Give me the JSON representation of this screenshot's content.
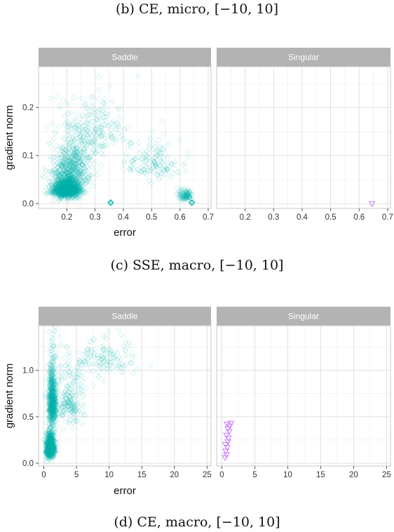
{
  "captions": {
    "b": "(b) CE, micro, [−10, 10]",
    "c": "(c) SSE, macro, [−10, 10]",
    "d": "(d) CE, macro, [−10, 10]"
  },
  "colors": {
    "saddle": "#00b3b0",
    "singular": "#c77cff",
    "strip": "#b3b3b3",
    "grid": "#ebebeb",
    "border": "#c8c8c8"
  },
  "chart_data": [
    {
      "type": "scatter",
      "id": "c",
      "xlabel": "error",
      "ylabel": "gradient norm",
      "facets": [
        "Saddle",
        "Singular"
      ],
      "xlim": [
        0.1,
        0.71
      ],
      "ylim": [
        -0.01,
        0.285
      ],
      "x_ticks": [
        "0.2",
        "0.3",
        "0.4",
        "0.5",
        "0.6",
        "0.7"
      ],
      "y_ticks": [
        "0.0",
        "0.1",
        "0.2"
      ],
      "x_tick_values": [
        0.2,
        0.3,
        0.4,
        0.5,
        0.6,
        0.7
      ],
      "y_tick_values": [
        0.0,
        0.1,
        0.2
      ],
      "series": [
        {
          "facet": "Saddle",
          "marker": "diamond",
          "clusters": [
            {
              "x_center": 0.2,
              "y_center": 0.022,
              "x_spread": 0.05,
              "y_spread": 0.02,
              "count": 1400
            },
            {
              "x_center": 0.22,
              "y_center": 0.06,
              "x_spread": 0.07,
              "y_spread": 0.05,
              "count": 500
            },
            {
              "x_center": 0.3,
              "y_center": 0.13,
              "x_spread": 0.11,
              "y_spread": 0.06,
              "count": 220
            },
            {
              "x_center": 0.5,
              "y_center": 0.07,
              "x_spread": 0.1,
              "y_spread": 0.04,
              "count": 160
            },
            {
              "x_center": 0.62,
              "y_center": 0.012,
              "x_spread": 0.025,
              "y_spread": 0.01,
              "count": 120
            }
          ],
          "highlight_points": [
            {
              "x": 0.355,
              "y": 0.002
            },
            {
              "x": 0.642,
              "y": 0.002
            }
          ]
        },
        {
          "facet": "Singular",
          "marker": "triangle-down",
          "points": [
            {
              "x": 0.645,
              "y": 0.0
            }
          ]
        }
      ]
    },
    {
      "type": "scatter",
      "id": "d",
      "xlabel": "error",
      "ylabel": "gradient norm",
      "facets": [
        "Saddle",
        "Singular"
      ],
      "xlim": [
        -0.8,
        25.6
      ],
      "ylim": [
        -0.03,
        1.48
      ],
      "x_ticks": [
        "0",
        "5",
        "10",
        "15",
        "20",
        "25"
      ],
      "y_ticks": [
        "0.0",
        "0.5",
        "1.0"
      ],
      "x_tick_values": [
        0,
        5,
        10,
        15,
        20,
        25
      ],
      "y_tick_values": [
        0.0,
        0.5,
        1.0
      ],
      "series": [
        {
          "facet": "Saddle",
          "marker": "diamond",
          "clusters": [
            {
              "x_center": 1.0,
              "y_center": 0.12,
              "x_spread": 0.6,
              "y_spread": 0.12,
              "count": 1000
            },
            {
              "x_center": 1.3,
              "y_center": 0.55,
              "x_spread": 0.6,
              "y_spread": 0.35,
              "count": 700
            },
            {
              "x_center": 4.0,
              "y_center": 0.55,
              "x_spread": 2.5,
              "y_spread": 0.3,
              "count": 220
            },
            {
              "x_center": 9.0,
              "y_center": 1.05,
              "x_spread": 5.0,
              "y_spread": 0.2,
              "count": 150
            }
          ],
          "highlight_points": []
        },
        {
          "facet": "Singular",
          "marker": "triangle-down",
          "points": [
            {
              "x": 0.5,
              "y": 0.06
            },
            {
              "x": 0.7,
              "y": 0.09
            },
            {
              "x": 0.6,
              "y": 0.13
            },
            {
              "x": 0.8,
              "y": 0.17
            },
            {
              "x": 0.55,
              "y": 0.2
            },
            {
              "x": 0.9,
              "y": 0.23
            },
            {
              "x": 1.0,
              "y": 0.27
            },
            {
              "x": 0.7,
              "y": 0.3
            },
            {
              "x": 1.1,
              "y": 0.34
            },
            {
              "x": 0.9,
              "y": 0.37
            },
            {
              "x": 1.2,
              "y": 0.4
            },
            {
              "x": 0.8,
              "y": 0.42
            },
            {
              "x": 1.4,
              "y": 0.43
            }
          ]
        }
      ]
    }
  ]
}
